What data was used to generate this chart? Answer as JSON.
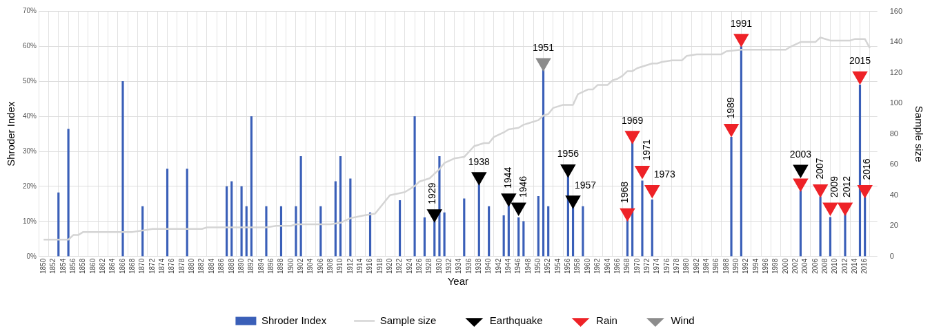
{
  "chart_data": {
    "type": "bar",
    "xlabel": "Year",
    "ylabel": "Shroder Index",
    "y2label": "Sample size",
    "xlim": [
      1850,
      2017.5
    ],
    "xticks": [
      1850,
      1852,
      1854,
      1856,
      1858,
      1860,
      1862,
      1864,
      1866,
      1868,
      1870,
      1872,
      1874,
      1876,
      1878,
      1880,
      1882,
      1884,
      1886,
      1888,
      1890,
      1892,
      1894,
      1896,
      1898,
      1900,
      1902,
      1904,
      1906,
      1908,
      1910,
      1912,
      1914,
      1916,
      1918,
      1920,
      1922,
      1924,
      1926,
      1928,
      1930,
      1932,
      1934,
      1936,
      1938,
      1940,
      1942,
      1944,
      1946,
      1948,
      1950,
      1952,
      1954,
      1956,
      1958,
      1960,
      1962,
      1964,
      1966,
      1968,
      1970,
      1972,
      1974,
      1976,
      1978,
      1980,
      1982,
      1984,
      1986,
      1988,
      1990,
      1992,
      1994,
      1996,
      1998,
      2000,
      2002,
      2004,
      2006,
      2008,
      2010,
      2012,
      2014,
      2016
    ],
    "ylim": [
      0,
      70
    ],
    "yticks": [
      {
        "value": 0,
        "label": "0%"
      },
      {
        "value": 10,
        "label": "10%"
      },
      {
        "value": 20,
        "label": "20%"
      },
      {
        "value": 30,
        "label": "30%"
      },
      {
        "value": 40,
        "label": "40%"
      },
      {
        "value": 50,
        "label": "50%"
      },
      {
        "value": 60,
        "label": "60%"
      },
      {
        "value": 70,
        "label": "70%"
      }
    ],
    "y2lim": [
      0,
      160
    ],
    "y2ticks": [
      0,
      20,
      40,
      60,
      80,
      100,
      120,
      140,
      160
    ],
    "grid": true,
    "legend": "bottom",
    "series": [
      {
        "name": "Shroder Index",
        "color": "#3a5fb8",
        "x": [
          1853,
          1855,
          1866,
          1870,
          1875,
          1879,
          1887,
          1888,
          1890,
          1891,
          1892,
          1895,
          1898,
          1901,
          1902,
          1906,
          1909,
          1910,
          1912,
          1916,
          1922,
          1925,
          1927,
          1929,
          1930,
          1931,
          1935,
          1938,
          1940,
          1943,
          1944,
          1946,
          1947,
          1950,
          1951,
          1952,
          1956,
          1957,
          1959,
          1968,
          1969,
          1971,
          1973,
          1989,
          1991,
          2003,
          2007,
          2009,
          2012,
          2015,
          2016
        ],
        "values": [
          18.2,
          36.4,
          50,
          14.3,
          25,
          25,
          20,
          21.4,
          20,
          14.3,
          40,
          14.3,
          14.3,
          14.3,
          28.6,
          14.3,
          21.4,
          28.6,
          22.2,
          12.5,
          16,
          40,
          11.1,
          10,
          28.6,
          12.5,
          16.5,
          20.5,
          14.3,
          11.7,
          15,
          11.1,
          10,
          17.2,
          53.3,
          14.3,
          23,
          14.3,
          14.3,
          10.6,
          32.7,
          21.6,
          16.2,
          34.1,
          60,
          18.8,
          17.1,
          11.2,
          12.2,
          49,
          16.9
        ]
      },
      {
        "name": "Sample size",
        "type": "line",
        "axis": "y2",
        "marker": "none",
        "color": "#d4d4d4",
        "x": [
          1850,
          1855,
          1856,
          1857,
          1858,
          1868,
          1870,
          1872,
          1882,
          1883,
          1895,
          1897,
          1900,
          1901,
          1908,
          1910,
          1912,
          1915,
          1917,
          1920,
          1923,
          1925,
          1926,
          1928,
          1930,
          1931,
          1933,
          1935,
          1937,
          1939,
          1940,
          1941,
          1943,
          1944,
          1946,
          1947,
          1950,
          1951,
          1952,
          1953,
          1955,
          1957,
          1958,
          1960,
          1961,
          1962,
          1964,
          1965,
          1966,
          1967,
          1968,
          1969,
          1970,
          1972,
          1973,
          1974,
          1975,
          1977,
          1979,
          1980,
          1982,
          1987,
          1988,
          1991,
          2000,
          2001,
          2003,
          2006,
          2007,
          2009,
          2013,
          2014,
          2016,
          2017
        ],
        "values": [
          11,
          11,
          14,
          14,
          16,
          16,
          17,
          18,
          18,
          19,
          19,
          20,
          20,
          21,
          21,
          22,
          25,
          27,
          28,
          40,
          42,
          46,
          49,
          51,
          57,
          61,
          64,
          65,
          72,
          74,
          74,
          78,
          81,
          83,
          84,
          86,
          89,
          92,
          93,
          97,
          99,
          99,
          106,
          109,
          109,
          112,
          112,
          115,
          116,
          118,
          121,
          121,
          123,
          125,
          126,
          126,
          127,
          128,
          128,
          131,
          132,
          132,
          134,
          135,
          135,
          137,
          140,
          140,
          143,
          141,
          141,
          142,
          142,
          136
        ]
      },
      {
        "name": "Earthquake",
        "type": "scatter",
        "marker": "triangle",
        "color": "#000000",
        "x": [
          1929,
          1938,
          1944,
          1946,
          1956,
          1957,
          2003
        ],
        "values": [
          12.2,
          22.8,
          16.7,
          14.1,
          25,
          16.1,
          24.9
        ]
      },
      {
        "name": "Rain",
        "type": "scatter",
        "marker": "triangle",
        "color": "#ee2227",
        "x": [
          1968,
          1969,
          1971,
          1973,
          1989,
          1991,
          2003,
          2007,
          2009,
          2012,
          2015,
          2016
        ],
        "values": [
          12.5,
          34.6,
          24.6,
          19.1,
          36.6,
          62.3,
          21,
          19.3,
          14.1,
          14.1,
          51.6,
          19.1
        ]
      },
      {
        "name": "Wind",
        "type": "scatter",
        "marker": "triangle",
        "color": "#8c8c8c",
        "x": [
          1951
        ],
        "values": [
          55.4
        ]
      }
    ],
    "annotations": [
      {
        "text": "1929",
        "x": 1929,
        "y": 12.2
      },
      {
        "text": "1938",
        "x": 1938,
        "y": 22.8
      },
      {
        "text": "1944",
        "x": 1944,
        "y": 16.7
      },
      {
        "text": "1946",
        "x": 1946,
        "y": 14.1
      },
      {
        "text": "1956",
        "x": 1956,
        "y": 25
      },
      {
        "text": "1957",
        "x": 1957,
        "y": 16.1
      },
      {
        "text": "2003",
        "x": 2003,
        "y": 24.9
      },
      {
        "text": "1968",
        "x": 1968,
        "y": 12.5
      },
      {
        "text": "1969",
        "x": 1969,
        "y": 34.6
      },
      {
        "text": "1971",
        "x": 1971,
        "y": 24.6
      },
      {
        "text": "1973",
        "x": 1973,
        "y": 19.1
      },
      {
        "text": "1989",
        "x": 1989,
        "y": 36.6
      },
      {
        "text": "1991",
        "x": 1991,
        "y": 62.3
      },
      {
        "text": "2007",
        "x": 2007,
        "y": 19.3
      },
      {
        "text": "2009",
        "x": 2009,
        "y": 14.1
      },
      {
        "text": "2012",
        "x": 2012,
        "y": 14.1
      },
      {
        "text": "2015",
        "x": 2015,
        "y": 51.6
      },
      {
        "text": "2016",
        "x": 2016,
        "y": 19.1
      },
      {
        "text": "1951",
        "x": 1951,
        "y": 55.4
      }
    ]
  }
}
